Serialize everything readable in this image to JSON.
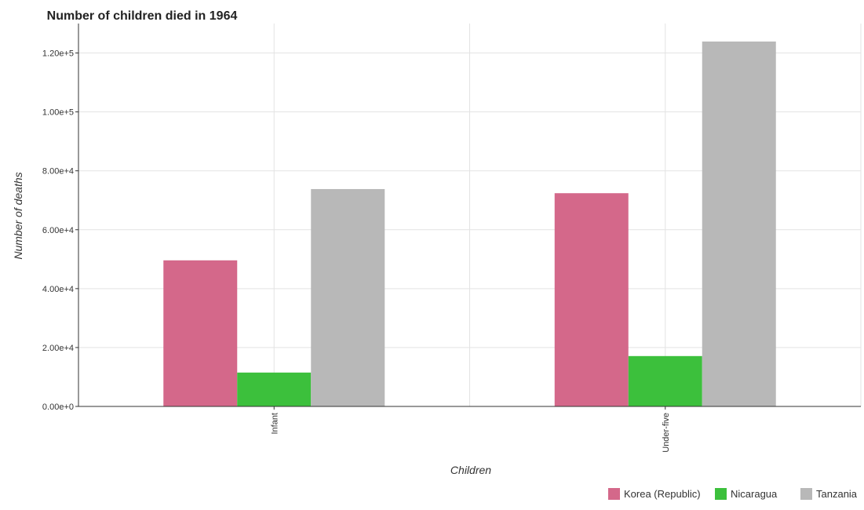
{
  "chart_data": {
    "type": "bar",
    "title": "Number of children died in 1964",
    "xlabel": "Children",
    "ylabel": "Number of deaths",
    "categories": [
      "Infant",
      "Under-five"
    ],
    "series": [
      {
        "name": "Korea (Republic)",
        "color": "#d4688a",
        "values": [
          49600,
          72400
        ]
      },
      {
        "name": "Nicaragua",
        "color": "#3cc03c",
        "values": [
          11500,
          17100
        ]
      },
      {
        "name": "Tanzania",
        "color": "#b8b8b8",
        "values": [
          73800,
          123900
        ]
      }
    ],
    "ylim": [
      0,
      130000
    ],
    "yticks": [
      0,
      20000,
      40000,
      60000,
      80000,
      100000,
      120000
    ],
    "ytick_labels": [
      "0.00e+0",
      "2.00e+4",
      "4.00e+4",
      "6.00e+4",
      "8.00e+4",
      "1.00e+5",
      "1.20e+5"
    ],
    "grid": true,
    "legend_position": "bottom-right"
  }
}
